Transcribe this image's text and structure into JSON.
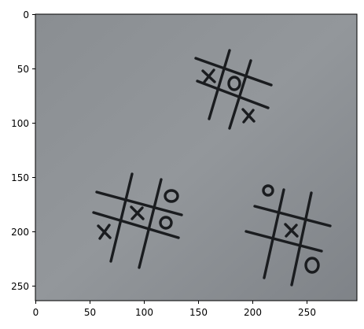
{
  "figure": {
    "x_ticks": [
      "0",
      "50",
      "100",
      "150",
      "200",
      "250"
    ],
    "y_ticks": [
      "0",
      "50",
      "100",
      "150",
      "200",
      "250"
    ],
    "photo": {
      "subject": "three hand-drawn tic-tac-toe boards on grey paper",
      "background_color": "#8e9296",
      "ink_color": "#1a1c1f"
    }
  }
}
